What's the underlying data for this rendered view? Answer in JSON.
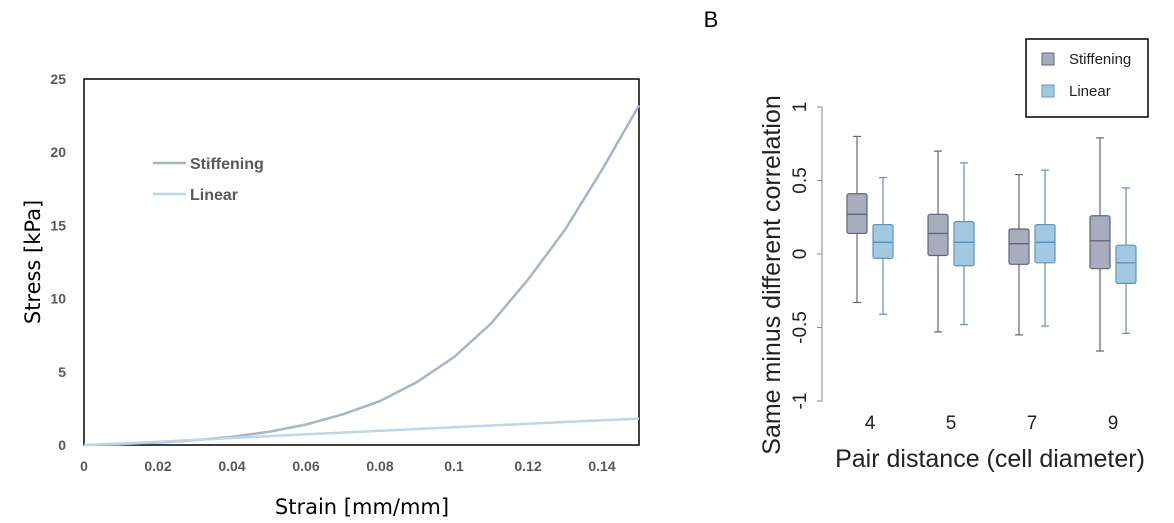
{
  "chart_data": [
    {
      "type": "line",
      "title": "",
      "xlabel": "Strain [mm/mm]",
      "ylabel": "Stress [kPa]",
      "xlim": [
        0,
        0.15
      ],
      "ylim": [
        0,
        25
      ],
      "xticks": [
        "0",
        "0.02",
        "0.04",
        "0.06",
        "0.08",
        "0.1",
        "0.12",
        "0.14"
      ],
      "yticks": [
        "0",
        "5",
        "10",
        "15",
        "20",
        "25"
      ],
      "legend_placement": "upper-left inside",
      "series": [
        {
          "name": "Stiffening",
          "color": "#a9b4c8",
          "x": [
            0,
            0.01,
            0.02,
            0.03,
            0.04,
            0.05,
            0.06,
            0.07,
            0.08,
            0.09,
            0.1,
            0.11,
            0.12,
            0.13,
            0.14,
            0.15
          ],
          "y": [
            0,
            0.06,
            0.17,
            0.33,
            0.56,
            0.9,
            1.4,
            2.1,
            3.0,
            4.3,
            6.0,
            8.3,
            11.3,
            14.7,
            18.8,
            23.2
          ]
        },
        {
          "name": "Linear",
          "color": "#bcd7ec",
          "x": [
            0,
            0.01,
            0.02,
            0.03,
            0.04,
            0.05,
            0.06,
            0.07,
            0.08,
            0.09,
            0.1,
            0.11,
            0.12,
            0.13,
            0.14,
            0.15
          ],
          "y": [
            0,
            0.1,
            0.22,
            0.35,
            0.48,
            0.61,
            0.73,
            0.85,
            0.97,
            1.09,
            1.21,
            1.33,
            1.45,
            1.57,
            1.69,
            1.8
          ]
        }
      ]
    },
    {
      "type": "box",
      "panel_label": "B",
      "title": "",
      "xlabel": "Pair distance (cell diameter)",
      "ylabel": "Same minus different correlation",
      "ylim": [
        -1,
        1
      ],
      "yticks": [
        "1",
        "0.5",
        "0",
        "-0.5",
        "-1"
      ],
      "categories": [
        "4",
        "5",
        "7",
        "9"
      ],
      "legend_placement": "top-right",
      "series": [
        {
          "name": "Stiffening",
          "color": "#a7adbf",
          "boxes": [
            {
              "min": -0.33,
              "q1": 0.14,
              "median": 0.27,
              "q3": 0.41,
              "max": 0.8
            },
            {
              "min": -0.53,
              "q1": -0.01,
              "median": 0.14,
              "q3": 0.27,
              "max": 0.7
            },
            {
              "min": -0.55,
              "q1": -0.07,
              "median": 0.07,
              "q3": 0.17,
              "max": 0.54
            },
            {
              "min": -0.66,
              "q1": -0.1,
              "median": 0.09,
              "q3": 0.26,
              "max": 0.79
            }
          ]
        },
        {
          "name": "Linear",
          "color": "#a3c9e2",
          "boxes": [
            {
              "min": -0.41,
              "q1": -0.03,
              "median": 0.08,
              "q3": 0.2,
              "max": 0.52
            },
            {
              "min": -0.48,
              "q1": -0.08,
              "median": 0.08,
              "q3": 0.22,
              "max": 0.62
            },
            {
              "min": -0.49,
              "q1": -0.06,
              "median": 0.08,
              "q3": 0.2,
              "max": 0.57
            },
            {
              "min": -0.54,
              "q1": -0.2,
              "median": -0.06,
              "q3": 0.06,
              "max": 0.45
            }
          ]
        }
      ]
    }
  ]
}
